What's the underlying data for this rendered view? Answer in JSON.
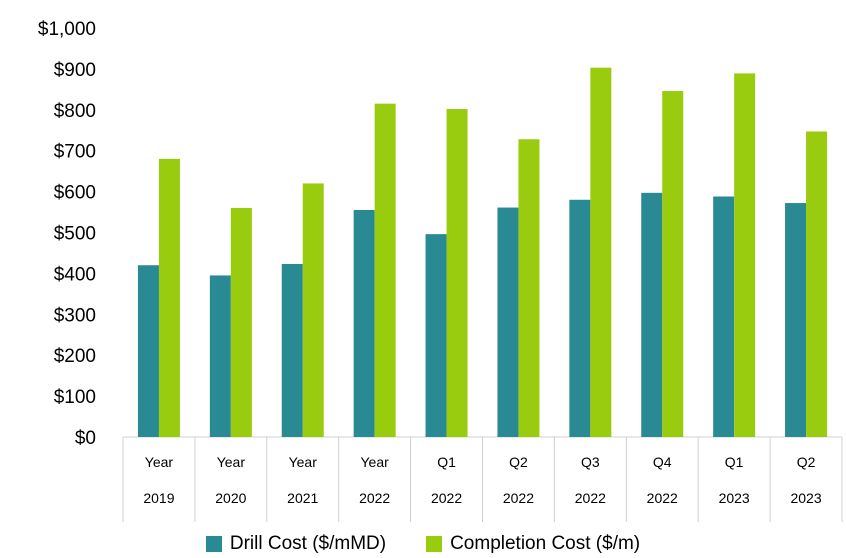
{
  "chart_data": {
    "type": "bar",
    "categories": [
      [
        "Year",
        "2019"
      ],
      [
        "Year",
        "2020"
      ],
      [
        "Year",
        "2021"
      ],
      [
        "Year",
        "2022"
      ],
      [
        "Q1",
        "2022"
      ],
      [
        "Q2",
        "2022"
      ],
      [
        "Q3",
        "2022"
      ],
      [
        "Q4",
        "2022"
      ],
      [
        "Q1",
        "2023"
      ],
      [
        "Q2",
        "2023"
      ]
    ],
    "series": [
      {
        "name": "Drill Cost ($/mMD)",
        "color": "#2a8a93",
        "values": [
          420,
          395,
          423,
          555,
          496,
          561,
          580,
          597,
          588,
          572
        ]
      },
      {
        "name": "Completion Cost ($/m)",
        "color": "#99cc0f",
        "values": [
          680,
          560,
          620,
          815,
          802,
          728,
          903,
          846,
          889,
          747
        ]
      }
    ],
    "ylim": [
      0,
      1000
    ],
    "yticks": [
      "$0",
      "$100",
      "$200",
      "$300",
      "$400",
      "$500",
      "$600",
      "$700",
      "$800",
      "$900",
      "$1,000"
    ],
    "grid": false,
    "legend_position": "bottom"
  }
}
